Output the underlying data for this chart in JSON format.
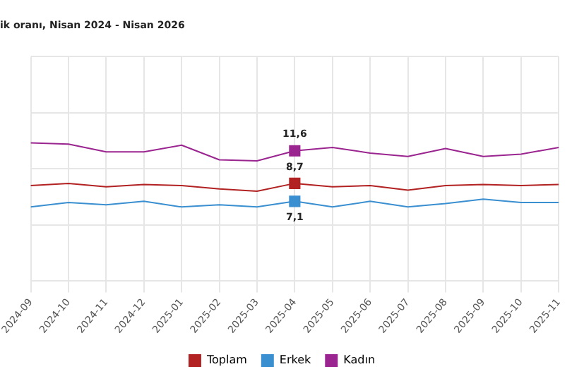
{
  "chart_data": {
    "type": "line",
    "title": "ik oranı, Nisan 2024 - Nisan 2026",
    "categories": [
      "2024-09",
      "2024-10",
      "2024-11",
      "2024-12",
      "2025-01",
      "2025-02",
      "2025-03",
      "2025-04",
      "2025-05",
      "2025-06",
      "2025-07",
      "2025-08",
      "2025-09",
      "2025-10",
      "2025-11"
    ],
    "series": [
      {
        "name": "Toplam",
        "color": "#b22222",
        "values": [
          8.5,
          8.7,
          8.4,
          8.6,
          8.5,
          8.2,
          8.0,
          8.7,
          8.4,
          8.5,
          8.1,
          8.5,
          8.6,
          8.5,
          8.6
        ],
        "value_labels": [
          null,
          null,
          null,
          null,
          null,
          null,
          null,
          "8,7",
          null,
          null,
          null,
          null,
          null,
          null,
          null
        ]
      },
      {
        "name": "Erkek",
        "color": "#3a8fd0",
        "values": [
          6.6,
          7.0,
          6.8,
          7.1,
          6.6,
          6.8,
          6.6,
          7.1,
          6.6,
          7.1,
          6.6,
          6.9,
          7.3,
          7.0,
          7.0
        ],
        "value_labels": [
          null,
          null,
          null,
          null,
          null,
          null,
          null,
          "7,1",
          null,
          null,
          null,
          null,
          null,
          null,
          null
        ]
      },
      {
        "name": "Kadın",
        "color": "#9b2590",
        "values": [
          12.3,
          12.2,
          11.5,
          11.5,
          12.1,
          10.8,
          10.7,
          11.6,
          11.9,
          11.4,
          11.1,
          11.8,
          11.1,
          11.3,
          11.9
        ],
        "value_labels": [
          null,
          null,
          null,
          null,
          null,
          null,
          null,
          "11,6",
          null,
          null,
          null,
          null,
          null,
          null,
          null
        ]
      }
    ],
    "ylim": [
      0,
      20
    ],
    "yticks": [
      {
        "value": 0,
        "label": null
      },
      {
        "value": 5,
        "label": null
      },
      {
        "value": 10,
        "label": null
      },
      {
        "value": 15,
        "label": null
      },
      {
        "value": 20,
        "label": null
      }
    ],
    "tick_labels": "x",
    "grid": true,
    "legend": "bottom",
    "marker": "none"
  }
}
